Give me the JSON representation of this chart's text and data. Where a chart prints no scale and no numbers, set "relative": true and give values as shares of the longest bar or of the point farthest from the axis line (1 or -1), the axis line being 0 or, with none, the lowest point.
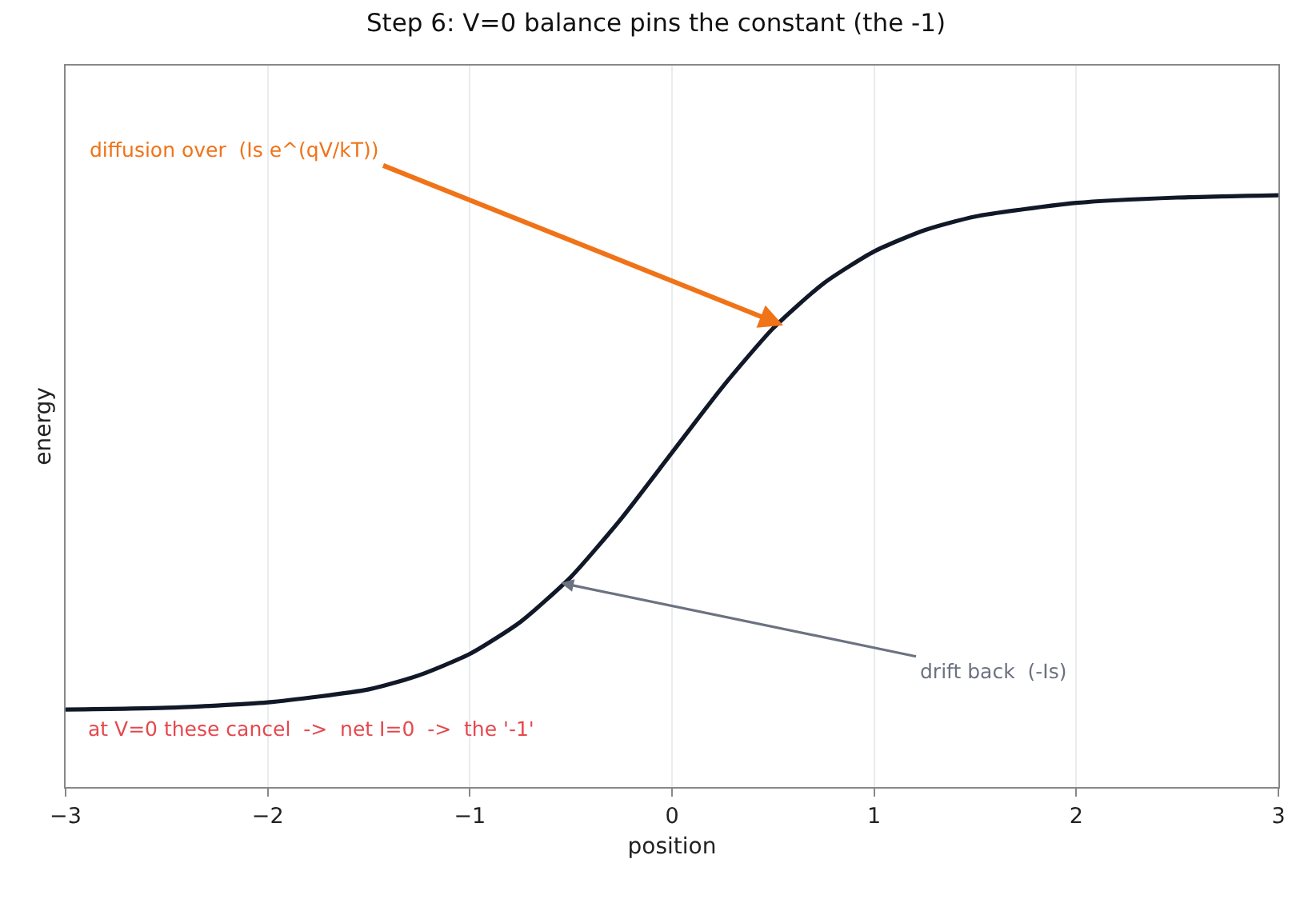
{
  "chart_data": {
    "type": "line",
    "title": "Step 6: V=0 balance pins the constant (the -1)",
    "xlabel": "position",
    "ylabel": "energy",
    "relative": true,
    "x": [
      -3,
      -2.5,
      -2,
      -1.5,
      -1.25,
      -1,
      -0.75,
      -0.5,
      -0.25,
      0,
      0.25,
      0.5,
      0.75,
      1,
      1.25,
      1.5,
      2,
      2.5,
      3
    ],
    "series": [
      {
        "color": "#111827",
        "values": [
          0.131,
          0.134,
          0.143,
          0.165,
          0.189,
          0.225,
          0.279,
          0.355,
          0.454,
          0.565,
          0.676,
          0.775,
          0.851,
          0.905,
          0.941,
          0.964,
          0.987,
          0.996,
          1
        ]
      }
    ],
    "xlim": [
      -3,
      3
    ],
    "xticks": [
      {
        "value": -3,
        "label": "−3"
      },
      {
        "value": -2,
        "label": "−2"
      },
      {
        "value": -1,
        "label": "−1"
      },
      0,
      1,
      2,
      3
    ],
    "grid": "x",
    "marker": "none",
    "line_style": "solid",
    "annotations": [
      {
        "text": "diffusion over  (Is e^(qV/kT))",
        "x": 0.55,
        "y": 0.78
      },
      {
        "text": "drift back  (-Is)",
        "x": -0.55,
        "y": 0.345
      },
      "at V=0 these cancel  ->  net I=0  ->  the '-1'"
    ]
  }
}
